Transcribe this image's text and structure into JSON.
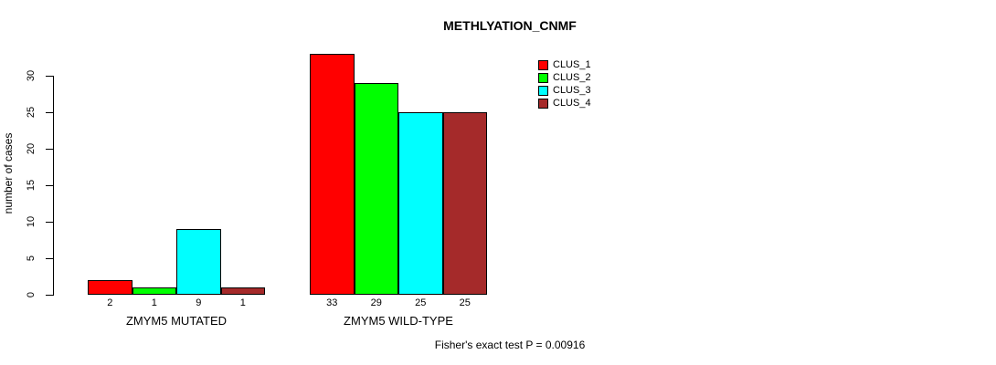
{
  "title": "METHLYATION_CNMF",
  "chart_data": {
    "type": "bar",
    "title": "METHLYATION_CNMF",
    "xlabel": "",
    "ylabel": "number of cases",
    "ylim": [
      0,
      33
    ],
    "yticks": [
      0,
      5,
      10,
      15,
      20,
      25,
      30
    ],
    "categories": [
      "ZMYM5 MUTATED",
      "ZMYM5 WILD-TYPE"
    ],
    "series": [
      {
        "name": "CLUS_1",
        "color": "#ff0000",
        "values": [
          2,
          33
        ]
      },
      {
        "name": "CLUS_2",
        "color": "#00ff00",
        "values": [
          1,
          29
        ]
      },
      {
        "name": "CLUS_3",
        "color": "#00ffff",
        "values": [
          9,
          25
        ]
      },
      {
        "name": "CLUS_4",
        "color": "#a52a2a",
        "values": [
          1,
          25
        ]
      }
    ],
    "bar_value_labels": [
      [
        "2",
        "1",
        "9",
        "1"
      ],
      [
        "33",
        "29",
        "25",
        "25"
      ]
    ],
    "legend_position": "top-right",
    "grid": false,
    "annotation": "Fisher's exact test P = 0.00916"
  }
}
